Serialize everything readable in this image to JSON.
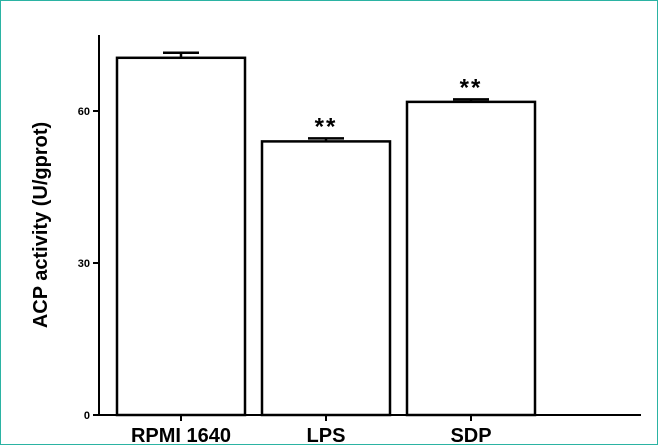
{
  "chart_data": {
    "type": "bar",
    "title": "",
    "xlabel": "",
    "ylabel": "ACP activity (U/gprot)",
    "categories": [
      "RPMI 1640",
      "LPS",
      "SDP"
    ],
    "values": [
      70.5,
      54,
      61.8
    ],
    "errors": [
      1.0,
      0.6,
      0.5
    ],
    "significance": [
      "",
      "**",
      "**"
    ],
    "yticks": [
      0,
      30,
      60
    ],
    "ytick_labels": [
      "0",
      "30",
      "60"
    ],
    "ylim": [
      0,
      75
    ],
    "grid": false,
    "legend": "none",
    "colors": {
      "bar_fill": "#ffffff",
      "bar_stroke": "#000000",
      "frame_border": "#2bb3a3"
    }
  }
}
